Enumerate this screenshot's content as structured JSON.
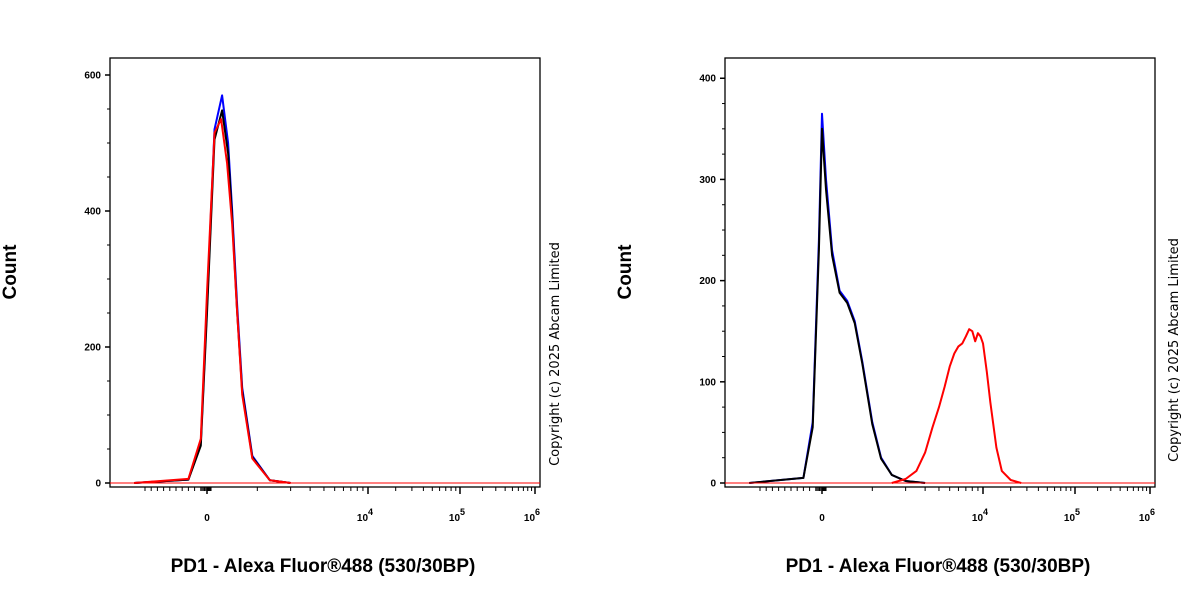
{
  "chart_data": [
    {
      "type": "line",
      "xlabel": "PD1 - Alexa Fluor®488 (530/30BP)",
      "ylabel": "Count",
      "x_scale": "biexponential",
      "ylim": [
        0,
        625
      ],
      "y_ticks": [
        0,
        200,
        400,
        600
      ],
      "x_tick_labels": [
        {
          "label": "0",
          "value": 0
        },
        {
          "label": "10",
          "sup": "4",
          "value": 10000
        },
        {
          "label": "10",
          "sup": "5",
          "value": 100000
        },
        {
          "label": "10",
          "sup": "6",
          "value": 1000000
        }
      ],
      "copyright": "Copyright (c) 2025 Abcam Limited",
      "series": [
        {
          "color": "#0000ff",
          "x": [
            -1200,
            -300,
            -100,
            0,
            150,
            300,
            420,
            500,
            600,
            700,
            900,
            1300,
            2000
          ],
          "y": [
            0,
            5,
            60,
            260,
            520,
            570,
            500,
            400,
            260,
            140,
            40,
            4,
            0
          ]
        },
        {
          "color": "#000000",
          "x": [
            -1200,
            -300,
            -100,
            0,
            150,
            300,
            420,
            500,
            600,
            700,
            900,
            1300,
            2000
          ],
          "y": [
            0,
            5,
            55,
            250,
            505,
            548,
            485,
            390,
            250,
            135,
            38,
            4,
            0
          ]
        },
        {
          "color": "#ff0000",
          "x": [
            -1200,
            -300,
            -100,
            0,
            150,
            280,
            400,
            500,
            600,
            700,
            900,
            1300,
            2000
          ],
          "y": [
            0,
            6,
            65,
            280,
            515,
            535,
            470,
            380,
            250,
            130,
            36,
            4,
            0
          ]
        }
      ]
    },
    {
      "type": "line",
      "xlabel": "PD1 - Alexa Fluor®488 (530/30BP)",
      "ylabel": "Count",
      "x_scale": "biexponential",
      "ylim": [
        0,
        420
      ],
      "y_ticks": [
        0,
        100,
        200,
        300,
        400
      ],
      "x_tick_labels": [
        {
          "label": "0",
          "value": 0
        },
        {
          "label": "10",
          "sup": "4",
          "value": 10000
        },
        {
          "label": "10",
          "sup": "5",
          "value": 100000
        },
        {
          "label": "10",
          "sup": "6",
          "value": 1000000
        }
      ],
      "copyright": "Copyright (c) 2025 Abcam Limited",
      "series": [
        {
          "color": "#0000ff",
          "x": [
            -1200,
            -300,
            -150,
            -50,
            0,
            80,
            200,
            350,
            500,
            650,
            800,
            1000,
            1200,
            1500,
            2000,
            3000
          ],
          "y": [
            0,
            5,
            60,
            240,
            365,
            300,
            230,
            190,
            180,
            160,
            120,
            60,
            25,
            8,
            2,
            0
          ]
        },
        {
          "color": "#000000",
          "x": [
            -1200,
            -300,
            -150,
            -50,
            0,
            80,
            200,
            350,
            500,
            650,
            800,
            1000,
            1200,
            1500,
            2000,
            3000
          ],
          "y": [
            0,
            5,
            55,
            230,
            350,
            290,
            225,
            188,
            178,
            158,
            118,
            58,
            24,
            8,
            2,
            0
          ]
        },
        {
          "color": "#ff0000",
          "x": [
            1500,
            2000,
            2500,
            3000,
            3500,
            4000,
            4500,
            5000,
            5500,
            6000,
            6500,
            7000,
            7500,
            8000,
            8500,
            9000,
            9500,
            10000,
            11000,
            12000,
            14000,
            16000,
            20000,
            26000
          ],
          "y": [
            0,
            4,
            12,
            30,
            55,
            75,
            95,
            115,
            128,
            135,
            138,
            145,
            152,
            150,
            140,
            148,
            145,
            138,
            110,
            80,
            35,
            12,
            3,
            0
          ]
        }
      ]
    }
  ]
}
